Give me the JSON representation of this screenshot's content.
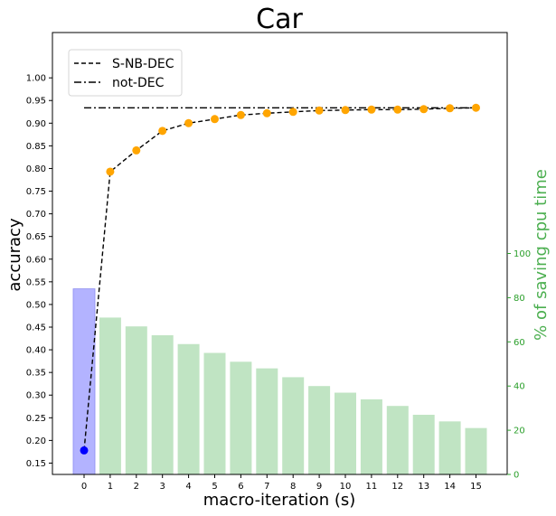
{
  "chart_data": {
    "type": "line",
    "title": "Car",
    "xlabel": "macro-iteration (s)",
    "ylabel": "accuracy",
    "y2label": "% of saving cpu time",
    "x": [
      0,
      1,
      2,
      3,
      4,
      5,
      6,
      7,
      8,
      9,
      10,
      11,
      12,
      13,
      14,
      15
    ],
    "xticks": [
      "0",
      "1",
      "2",
      "3",
      "4",
      "5",
      "6",
      "7",
      "8",
      "9",
      "10",
      "11",
      "12",
      "13",
      "14",
      "15"
    ],
    "yticks": [
      "0.15",
      "0.20",
      "0.25",
      "0.30",
      "0.35",
      "0.40",
      "0.45",
      "0.50",
      "0.55",
      "0.60",
      "0.65",
      "0.70",
      "0.75",
      "0.80",
      "0.85",
      "0.90",
      "0.95",
      "1.00"
    ],
    "y2ticks": [
      "0",
      "20",
      "40",
      "60",
      "80",
      "100"
    ],
    "ylim": [
      0.125,
      1.1
    ],
    "y2lim": [
      0,
      200
    ],
    "legend": [
      "S-NB-DEC",
      "not-DEC"
    ],
    "legend_position": "upper-left",
    "series": [
      {
        "name": "S-NB-DEC",
        "style": "dashed",
        "values": [
          0.178,
          0.793,
          0.84,
          0.883,
          0.9,
          0.909,
          0.918,
          0.922,
          0.925,
          0.928,
          0.929,
          0.93,
          0.93,
          0.931,
          0.933,
          0.934
        ],
        "marker_color_first": "#0000ff",
        "marker_color": "#ffa500"
      },
      {
        "name": "not-DEC",
        "style": "dashdot",
        "values": [
          0.934,
          0.934,
          0.934,
          0.934,
          0.934,
          0.934,
          0.934,
          0.934,
          0.934,
          0.934,
          0.934,
          0.934,
          0.934,
          0.934,
          0.934,
          0.934
        ]
      }
    ],
    "bars": {
      "axis": "right",
      "values": [
        84,
        71,
        67,
        63,
        59,
        55,
        51,
        48,
        44,
        40,
        37,
        34,
        31,
        27,
        24,
        21
      ],
      "first_color": "#b3b3ff",
      "color": "#c0e4c3"
    },
    "grid": false
  }
}
